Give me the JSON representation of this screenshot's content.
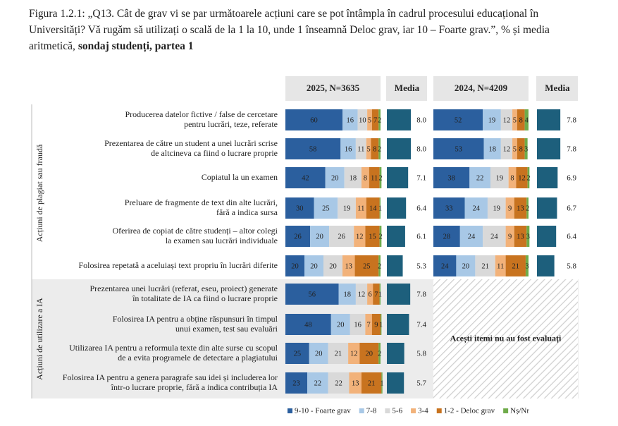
{
  "chart_data": {
    "type": "bar",
    "title": "Figura 1.2.1: „Q13. Cât de grav vi se par următoarele acțiuni care se pot întâmpla în cadrul procesului educațional în Universități? Vă rugăm să utilizați o scală de la 1 la 10, unde 1 înseamnă Deloc grav, iar 10 – Foarte grav.”, % și media aritmetică,",
    "title_emphasis": "sondaj studenți, partea 1",
    "groups": [
      {
        "label": "Acțiuni de plagiat sau fraudă",
        "categories": [
          [
            "Producerea datelor fictive / false de cercetare",
            "pentru lucrări, teze, referate"
          ],
          [
            "Prezentarea de către un student a unei lucrări scrise",
            "de altcineva ca fiind o lucrare proprie"
          ],
          [
            "Copiatul la un examen"
          ],
          [
            "Preluare de fragmente de text din alte lucrări,",
            "fără a indica sursa"
          ],
          [
            "Oferirea de copiat de către studenți – altor colegi",
            "la examen sau lucrări individuale"
          ],
          [
            "Folosirea repetată a aceluiași text propriu în lucrări diferite"
          ]
        ]
      },
      {
        "label": "Acțiuni de utilizare a IA",
        "categories": [
          [
            "Prezentarea unei lucrări (referat, eseu, proiect) generate",
            "în totalitate de IA ca fiind o lucrare proprie"
          ],
          [
            "Folosirea IA pentru a obține răspunsuri în timpul",
            "unui examen, test sau evaluări"
          ],
          [
            "Utilizarea IA pentru a reformula texte din alte surse cu scopul",
            "de a evita programele de detectare a plagiatului"
          ],
          [
            "Folosirea IA pentru a genera paragrafe sau idei și includerea lor",
            "într-o lucrare proprie, fără a indica contribuția IA"
          ]
        ]
      }
    ],
    "series": [
      {
        "name": "9-10 - Foarte grav",
        "color": "#2b5f9e"
      },
      {
        "name": "7-8",
        "color": "#a8c8e6"
      },
      {
        "name": "5-6",
        "color": "#d9d9d9"
      },
      {
        "name": "3-4",
        "color": "#f2b27a"
      },
      {
        "name": "1-2 - Deloc grav",
        "color": "#c8731f"
      },
      {
        "name": "Nș/Nr",
        "color": "#6fab4a"
      }
    ],
    "panels": [
      {
        "title": "2025, N=3635",
        "values": [
          [
            60,
            16,
            10,
            5,
            7,
            2
          ],
          [
            58,
            16,
            11,
            5,
            8,
            2
          ],
          [
            42,
            20,
            18,
            8,
            11,
            2
          ],
          [
            30,
            25,
            19,
            11,
            14,
            1
          ],
          [
            26,
            20,
            26,
            12,
            15,
            2
          ],
          [
            20,
            20,
            20,
            13,
            25,
            2
          ],
          [
            56,
            18,
            12,
            6,
            7,
            1
          ],
          [
            48,
            20,
            16,
            7,
            9,
            1
          ],
          [
            25,
            20,
            21,
            12,
            20,
            2
          ],
          [
            23,
            22,
            22,
            13,
            21,
            1
          ]
        ],
        "media": {
          "title": "Media",
          "color": "#1d5f7c",
          "values": [
            8.0,
            8.0,
            7.1,
            6.4,
            6.1,
            5.3,
            7.8,
            7.4,
            5.8,
            5.7
          ],
          "value_labels": [
            "8.0",
            "8.0",
            "7.1",
            "6.4",
            "6.1",
            "5.3",
            "7.8",
            "7.4",
            "5.8",
            "5.7"
          ]
        }
      },
      {
        "title": "2024, N=4209",
        "values": [
          [
            52,
            19,
            12,
            5,
            8,
            4
          ],
          [
            53,
            18,
            12,
            5,
            8,
            3
          ],
          [
            38,
            22,
            19,
            8,
            12,
            2
          ],
          [
            33,
            24,
            19,
            9,
            13,
            2
          ],
          [
            28,
            24,
            24,
            9,
            13,
            3
          ],
          [
            24,
            20,
            21,
            11,
            21,
            3
          ]
        ],
        "media": {
          "title": "Media",
          "color": "#1d5f7c",
          "values": [
            7.8,
            7.8,
            6.9,
            6.7,
            6.4,
            5.8
          ],
          "value_labels": [
            "7.8",
            "7.8",
            "6.9",
            "6.7",
            "6.4",
            "5.8"
          ]
        },
        "note": "Acești itemi nu au fost evaluați"
      }
    ]
  }
}
